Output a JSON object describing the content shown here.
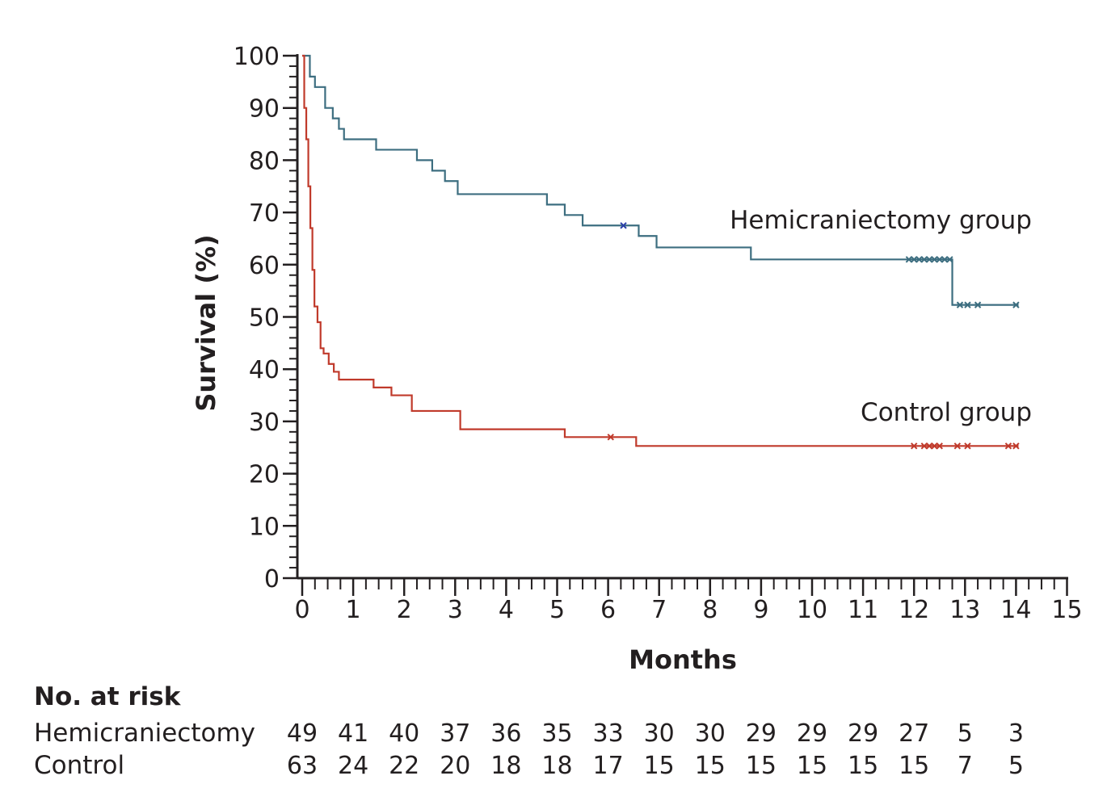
{
  "chart_data": {
    "type": "line",
    "subtype": "kaplan-meier",
    "xlabel": "Months",
    "ylabel": "Survival (%)",
    "xlim": [
      0,
      15
    ],
    "ylim": [
      0,
      100
    ],
    "x_ticks": [
      0,
      1,
      2,
      3,
      4,
      5,
      6,
      7,
      8,
      9,
      10,
      11,
      12,
      13,
      14,
      15
    ],
    "y_ticks": [
      0,
      10,
      20,
      30,
      40,
      50,
      60,
      70,
      80,
      90,
      100
    ],
    "legend_placement": "inline-right",
    "series": [
      {
        "name": "Hemicraniectomy group",
        "color": "#3d6e80",
        "steps": [
          {
            "x": 0,
            "y": 100
          },
          {
            "x": 0.15,
            "y": 96
          },
          {
            "x": 0.25,
            "y": 94
          },
          {
            "x": 0.45,
            "y": 90
          },
          {
            "x": 0.6,
            "y": 88
          },
          {
            "x": 0.72,
            "y": 86
          },
          {
            "x": 0.82,
            "y": 84
          },
          {
            "x": 1.45,
            "y": 82
          },
          {
            "x": 2.25,
            "y": 80
          },
          {
            "x": 2.55,
            "y": 78
          },
          {
            "x": 2.8,
            "y": 76
          },
          {
            "x": 3.05,
            "y": 73.5
          },
          {
            "x": 4.8,
            "y": 71.5
          },
          {
            "x": 5.15,
            "y": 69.5
          },
          {
            "x": 5.5,
            "y": 67.5
          },
          {
            "x": 6.6,
            "y": 65.5
          },
          {
            "x": 6.95,
            "y": 63.3
          },
          {
            "x": 8.8,
            "y": 61
          },
          {
            "x": 12.75,
            "y": 52.3
          },
          {
            "x": 14.05,
            "y": 52.3
          }
        ],
        "censored": [
          6.3,
          11.9,
          12.0,
          12.1,
          12.2,
          12.3,
          12.4,
          12.5,
          12.6,
          12.7,
          12.9,
          13.05,
          13.25,
          14.0
        ],
        "censored_colors": {
          "6.3": "#2b3fa8"
        }
      },
      {
        "name": "Control group",
        "color": "#c03a2b",
        "steps": [
          {
            "x": 0,
            "y": 100
          },
          {
            "x": 0.04,
            "y": 90
          },
          {
            "x": 0.08,
            "y": 84
          },
          {
            "x": 0.12,
            "y": 75
          },
          {
            "x": 0.16,
            "y": 67
          },
          {
            "x": 0.2,
            "y": 59
          },
          {
            "x": 0.24,
            "y": 52
          },
          {
            "x": 0.3,
            "y": 49
          },
          {
            "x": 0.36,
            "y": 44
          },
          {
            "x": 0.42,
            "y": 43
          },
          {
            "x": 0.52,
            "y": 41
          },
          {
            "x": 0.62,
            "y": 39.5
          },
          {
            "x": 0.72,
            "y": 38
          },
          {
            "x": 1.4,
            "y": 36.5
          },
          {
            "x": 1.75,
            "y": 35
          },
          {
            "x": 2.15,
            "y": 32
          },
          {
            "x": 3.1,
            "y": 28.5
          },
          {
            "x": 5.15,
            "y": 27
          },
          {
            "x": 6.55,
            "y": 25.3
          },
          {
            "x": 14.05,
            "y": 25.3
          }
        ],
        "censored": [
          6.05,
          12.0,
          12.2,
          12.3,
          12.4,
          12.5,
          12.85,
          13.05,
          13.85,
          14.0
        ]
      }
    ]
  },
  "labels": {
    "y_axis_title": "Survival (%)",
    "x_axis_title": "Months",
    "hemi_label": "Hemicraniectomy group",
    "control_label": "Control group"
  },
  "at_risk": {
    "title": "No. at risk",
    "rows": [
      {
        "name": "Hemicraniectomy",
        "values": [
          "49",
          "41",
          "40",
          "37",
          "36",
          "35",
          "33",
          "30",
          "30",
          "29",
          "29",
          "29",
          "27",
          "5",
          "3"
        ]
      },
      {
        "name": "Control",
        "values": [
          "63",
          "24",
          "22",
          "20",
          "18",
          "18",
          "17",
          "15",
          "15",
          "15",
          "15",
          "15",
          "15",
          "7",
          "5"
        ]
      }
    ]
  }
}
